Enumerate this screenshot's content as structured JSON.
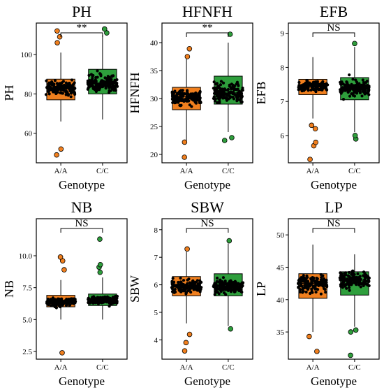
{
  "figure": {
    "x_axis_title": "Genotype",
    "colors": {
      "A/A": "#f07f1e",
      "C/C": "#2e9e3c",
      "points": "#000000"
    }
  },
  "chart_data": [
    {
      "type": "box",
      "title": "PH",
      "ylabel": "PH",
      "xlabel": "Genotype",
      "categories": [
        "A/A",
        "C/C"
      ],
      "yticks": [
        60,
        80,
        100
      ],
      "ylim": [
        45,
        116
      ],
      "boxes": [
        {
          "name": "A/A",
          "q1": 77,
          "median": 83,
          "q3": 87.5,
          "lower_whisker": 66,
          "upper_whisker": 101,
          "outliers": [
            49,
            52,
            106,
            109,
            112
          ]
        },
        {
          "name": "C/C",
          "q1": 80,
          "median": 85.5,
          "q3": 92.5,
          "lower_whisker": 67,
          "upper_whisker": 110,
          "outliers": [
            111,
            113
          ]
        }
      ],
      "significance": "**",
      "grid": false
    },
    {
      "type": "box",
      "title": "HFNFH",
      "ylabel": "HFNFH",
      "xlabel": "Genotype",
      "categories": [
        "A/A",
        "C/C"
      ],
      "yticks": [
        20,
        25,
        30,
        35,
        40
      ],
      "ylim": [
        18.5,
        43.5
      ],
      "boxes": [
        {
          "name": "A/A",
          "q1": 28,
          "median": 30,
          "q3": 32,
          "lower_whisker": 22.5,
          "upper_whisker": 37.5,
          "outliers": [
            19.5,
            22.2,
            37.5,
            38.9
          ]
        },
        {
          "name": "C/C",
          "q1": 29,
          "median": 31,
          "q3": 34,
          "lower_whisker": 24,
          "upper_whisker": 40,
          "outliers": [
            22.5,
            23,
            41.5
          ]
        }
      ],
      "significance": "**",
      "grid": false
    },
    {
      "type": "box",
      "title": "EFB",
      "ylabel": "EFB",
      "xlabel": "Genotype",
      "categories": [
        "A/A",
        "C/C"
      ],
      "yticks": [
        6,
        7,
        8,
        9
      ],
      "ylim": [
        5.2,
        9.3
      ],
      "boxes": [
        {
          "name": "A/A",
          "q1": 7.2,
          "median": 7.45,
          "q3": 7.65,
          "lower_whisker": 6.5,
          "upper_whisker": 8.3,
          "outliers": [
            5.3,
            5.7,
            5.8,
            6.2,
            6.3
          ]
        },
        {
          "name": "C/C",
          "q1": 7.05,
          "median": 7.4,
          "q3": 7.7,
          "lower_whisker": 6.1,
          "upper_whisker": 8.6,
          "outliers": [
            5.9,
            6.0,
            8.7
          ]
        }
      ],
      "significance": "NS",
      "grid": false
    },
    {
      "type": "box",
      "title": "NB",
      "ylabel": "NB",
      "xlabel": "Genotype",
      "categories": [
        "A/A",
        "C/C"
      ],
      "yticks": [
        2.5,
        5.0,
        7.5,
        10.0
      ],
      "ylim": [
        1.9,
        12.9
      ],
      "yticklabels": [
        "2.5",
        "5.0",
        "7.5",
        "10.0"
      ],
      "boxes": [
        {
          "name": "A/A",
          "q1": 6.0,
          "median": 6.4,
          "q3": 6.9,
          "lower_whisker": 5.0,
          "upper_whisker": 8.1,
          "outliers": [
            2.4,
            8.9,
            9.6,
            9.9
          ]
        },
        {
          "name": "C/C",
          "q1": 6.1,
          "median": 6.5,
          "q3": 7.0,
          "lower_whisker": 5.0,
          "upper_whisker": 8.3,
          "outliers": [
            8.7,
            9.1,
            9.3,
            11.3
          ]
        }
      ],
      "significance": "NS",
      "grid": false
    },
    {
      "type": "box",
      "title": "SBW",
      "ylabel": "SBW",
      "xlabel": "Genotype",
      "categories": [
        "A/A",
        "C/C"
      ],
      "yticks": [
        4,
        5,
        6,
        7,
        8
      ],
      "ylim": [
        3.3,
        8.4
      ],
      "boxes": [
        {
          "name": "A/A",
          "q1": 5.6,
          "median": 5.95,
          "q3": 6.3,
          "lower_whisker": 4.6,
          "upper_whisker": 7.2,
          "outliers": [
            3.6,
            3.9,
            4.2,
            7.3
          ]
        },
        {
          "name": "C/C",
          "q1": 5.6,
          "median": 5.95,
          "q3": 6.4,
          "lower_whisker": 4.5,
          "upper_whisker": 7.5,
          "outliers": [
            4.4,
            7.6
          ]
        }
      ],
      "significance": "NS",
      "grid": false
    },
    {
      "type": "box",
      "title": "LP",
      "ylabel": "LP",
      "xlabel": "Genotype",
      "categories": [
        "A/A",
        "C/C"
      ],
      "yticks": [
        35,
        40,
        45,
        50
      ],
      "ylim": [
        30.8,
        52.5
      ],
      "boxes": [
        {
          "name": "A/A",
          "q1": 40.2,
          "median": 42.5,
          "q3": 44.0,
          "lower_whisker": 35.0,
          "upper_whisker": 48.5,
          "outliers": [
            32,
            34.3
          ]
        },
        {
          "name": "C/C",
          "q1": 40.7,
          "median": 43.0,
          "q3": 44.3,
          "lower_whisker": 35.8,
          "upper_whisker": 47.0,
          "outliers": [
            31.4,
            35.0,
            35.3
          ]
        }
      ],
      "significance": "NS",
      "grid": false
    }
  ]
}
